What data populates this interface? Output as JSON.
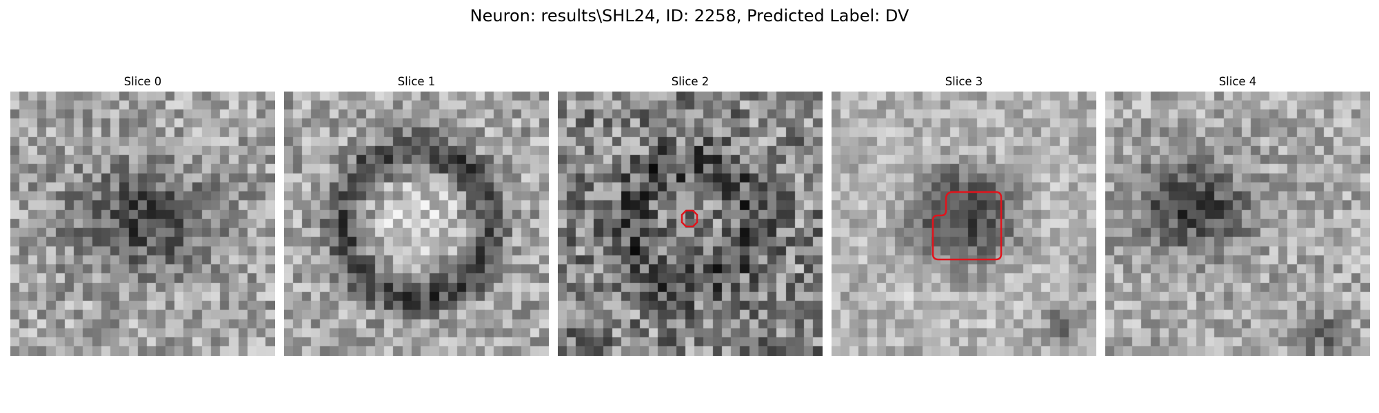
{
  "figure": {
    "title": "Neuron: results\\SHL24, ID: 2258, Predicted Label: DV",
    "roi_color": "#e0141c",
    "colormap": "grayscale"
  },
  "slices": [
    {
      "title": "Slice 0",
      "pattern": "dark-blob",
      "has_roi": false
    },
    {
      "title": "Slice 1",
      "pattern": "dark-ring-bright-center",
      "has_roi": false
    },
    {
      "title": "Slice 2",
      "pattern": "dark-ring-noisy",
      "has_roi": true,
      "roi_shape": "small-octagon"
    },
    {
      "title": "Slice 3",
      "pattern": "dark-blob-bright-surround",
      "has_roi": true,
      "roi_shape": "rounded-square-notched"
    },
    {
      "title": "Slice 4",
      "pattern": "dark-blob-offset",
      "has_roi": false
    }
  ]
}
